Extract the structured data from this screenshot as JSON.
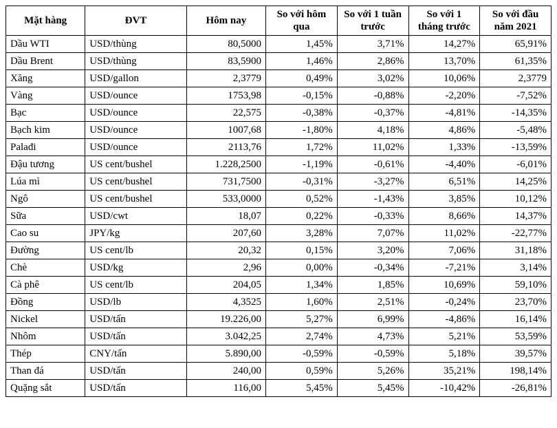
{
  "table": {
    "headers": {
      "item": "Mặt hàng",
      "unit": "ĐVT",
      "today": "Hôm nay",
      "vs_yesterday": "So với hôm qua",
      "vs_week": "So với 1 tuần trước",
      "vs_month": "So với 1 tháng trước",
      "vs_year_start": "So với đầu năm 2021"
    },
    "rows": [
      {
        "item": "Dầu WTI",
        "unit": "USD/thùng",
        "today": "80,5000",
        "d": "1,45%",
        "w": "3,71%",
        "m": "14,27%",
        "y": "65,91%"
      },
      {
        "item": "Dầu Brent",
        "unit": "USD/thùng",
        "today": "83,5900",
        "d": "1,46%",
        "w": "2,86%",
        "m": "13,70%",
        "y": "61,35%"
      },
      {
        "item": "Xăng",
        "unit": "USD/gallon",
        "today": "2,3779",
        "d": "0,49%",
        "w": "3,02%",
        "m": "10,06%",
        "y": "2,3779"
      },
      {
        "item": "Vàng",
        "unit": "USD/ounce",
        "today": "1753,98",
        "d": "-0,15%",
        "w": "-0,88%",
        "m": "-2,20%",
        "y": "-7,52%"
      },
      {
        "item": "Bạc",
        "unit": "USD/ounce",
        "today": "22,575",
        "d": "-0,38%",
        "w": "-0,37%",
        "m": "-4,81%",
        "y": "-14,35%"
      },
      {
        "item": "Bạch kim",
        "unit": "USD/ounce",
        "today": "1007,68",
        "d": "-1,80%",
        "w": "4,18%",
        "m": "4,86%",
        "y": "-5,48%"
      },
      {
        "item": "Palađi",
        "unit": "USD/ounce",
        "today": "2113,76",
        "d": "1,72%",
        "w": "11,02%",
        "m": "1,33%",
        "y": "-13,59%"
      },
      {
        "item": "Đậu tương",
        "unit": "US cent/bushel",
        "today": "1.228,2500",
        "d": "-1,19%",
        "w": "-0,61%",
        "m": "-4,40%",
        "y": "-6,01%"
      },
      {
        "item": "Lúa mì",
        "unit": "US cent/bushel",
        "today": "731,7500",
        "d": "-0,31%",
        "w": "-3,27%",
        "m": "6,51%",
        "y": "14,25%"
      },
      {
        "item": "Ngô",
        "unit": "US cent/bushel",
        "today": "533,0000",
        "d": "0,52%",
        "w": "-1,43%",
        "m": "3,85%",
        "y": "10,12%"
      },
      {
        "item": "Sữa",
        "unit": "USD/cwt",
        "today": "18,07",
        "d": "0,22%",
        "w": "-0,33%",
        "m": "8,66%",
        "y": "14,37%"
      },
      {
        "item": "Cao su",
        "unit": "JPY/kg",
        "today": "207,60",
        "d": "3,28%",
        "w": "7,07%",
        "m": "11,02%",
        "y": "-22,77%"
      },
      {
        "item": "Đường",
        "unit": "US cent/lb",
        "today": "20,32",
        "d": "0,15%",
        "w": "3,20%",
        "m": "7,06%",
        "y": "31,18%"
      },
      {
        "item": "Chè",
        "unit": "USD/kg",
        "today": "2,96",
        "d": "0,00%",
        "w": "-0,34%",
        "m": "-7,21%",
        "y": "3,14%"
      },
      {
        "item": "Cà phê",
        "unit": "US cent/lb",
        "today": "204,05",
        "d": "1,34%",
        "w": "1,85%",
        "m": "10,69%",
        "y": "59,10%"
      },
      {
        "item": "Đồng",
        "unit": "USD/lb",
        "today": "4,3525",
        "d": "1,60%",
        "w": "2,51%",
        "m": "-0,24%",
        "y": "23,70%"
      },
      {
        "item": "Nickel",
        "unit": "USD/tấn",
        "today": "19.226,00",
        "d": "5,27%",
        "w": "6,99%",
        "m": "-4,86%",
        "y": "16,14%"
      },
      {
        "item": "Nhôm",
        "unit": "USD/tấn",
        "today": "3.042,25",
        "d": "2,74%",
        "w": "4,73%",
        "m": "5,21%",
        "y": "53,59%"
      },
      {
        "item": "Thép",
        "unit": "CNY/tấn",
        "today": "5.890,00",
        "d": "-0,59%",
        "w": "-0,59%",
        "m": "5,18%",
        "y": "39,57%"
      },
      {
        "item": "Than đá",
        "unit": "USD/tấn",
        "today": "240,00",
        "d": "0,59%",
        "w": "5,26%",
        "m": "35,21%",
        "y": "198,14%"
      },
      {
        "item": "Quặng sắt",
        "unit": "USD/tấn",
        "today": "116,00",
        "d": "5,45%",
        "w": "5,45%",
        "m": "-10,42%",
        "y": "-26,81%"
      }
    ]
  }
}
